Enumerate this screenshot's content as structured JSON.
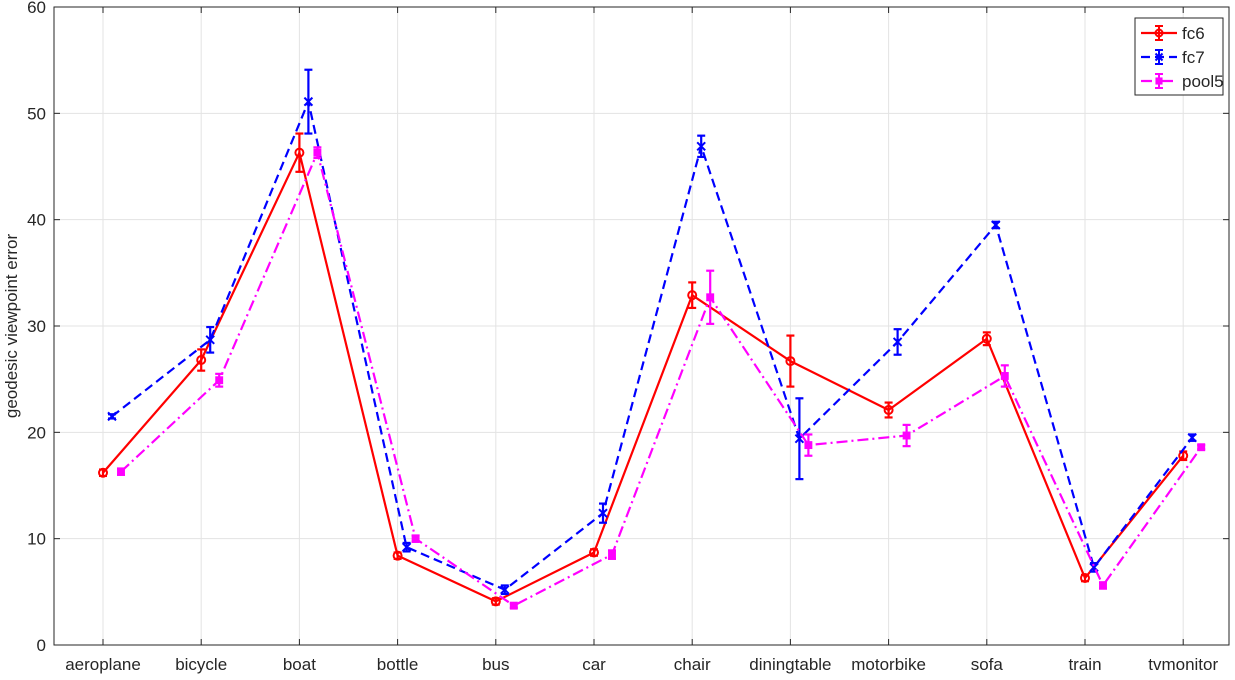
{
  "chart_data": {
    "type": "line",
    "title": "",
    "xlabel": "",
    "ylabel": "geodesic viewpoint error",
    "ylim": [
      0,
      60
    ],
    "yticks": [
      0,
      10,
      20,
      30,
      40,
      50,
      60
    ],
    "grid": true,
    "legend_position": "top-right",
    "categories": [
      "aeroplane",
      "bicycle",
      "boat",
      "bottle",
      "bus",
      "car",
      "chair",
      "diningtable",
      "motorbike",
      "sofa",
      "train",
      "tvmonitor"
    ],
    "series": [
      {
        "name": "fc6",
        "color": "#ff0000",
        "line_style": "solid",
        "marker": "circle",
        "values": [
          16.2,
          26.8,
          46.3,
          8.4,
          4.1,
          8.7,
          32.9,
          26.7,
          22.1,
          28.8,
          6.3,
          17.8
        ],
        "errors": [
          0.3,
          1.0,
          1.8,
          0.3,
          0.3,
          0.3,
          1.2,
          2.4,
          0.7,
          0.6,
          0.3,
          0.4
        ]
      },
      {
        "name": "fc7",
        "color": "#0000ff",
        "line_style": "dashed",
        "marker": "x",
        "values": [
          21.5,
          28.7,
          51.1,
          9.2,
          5.2,
          12.4,
          46.9,
          19.4,
          28.5,
          39.5,
          7.3,
          19.5
        ],
        "errors": [
          0.2,
          1.2,
          3.0,
          0.4,
          0.4,
          0.9,
          1.0,
          3.8,
          1.2,
          0.3,
          0.4,
          0.3
        ]
      },
      {
        "name": "pool5",
        "color": "#ff00ff",
        "line_style": "dashdot",
        "marker": "square",
        "values": [
          16.3,
          24.9,
          46.3,
          10.0,
          3.7,
          8.5,
          32.7,
          18.8,
          19.7,
          25.3,
          5.6,
          18.6
        ],
        "errors": [
          0.3,
          0.6,
          0.5,
          0.3,
          0.2,
          0.4,
          2.5,
          1.0,
          1.0,
          1.0,
          0.3,
          0.2
        ]
      }
    ]
  }
}
